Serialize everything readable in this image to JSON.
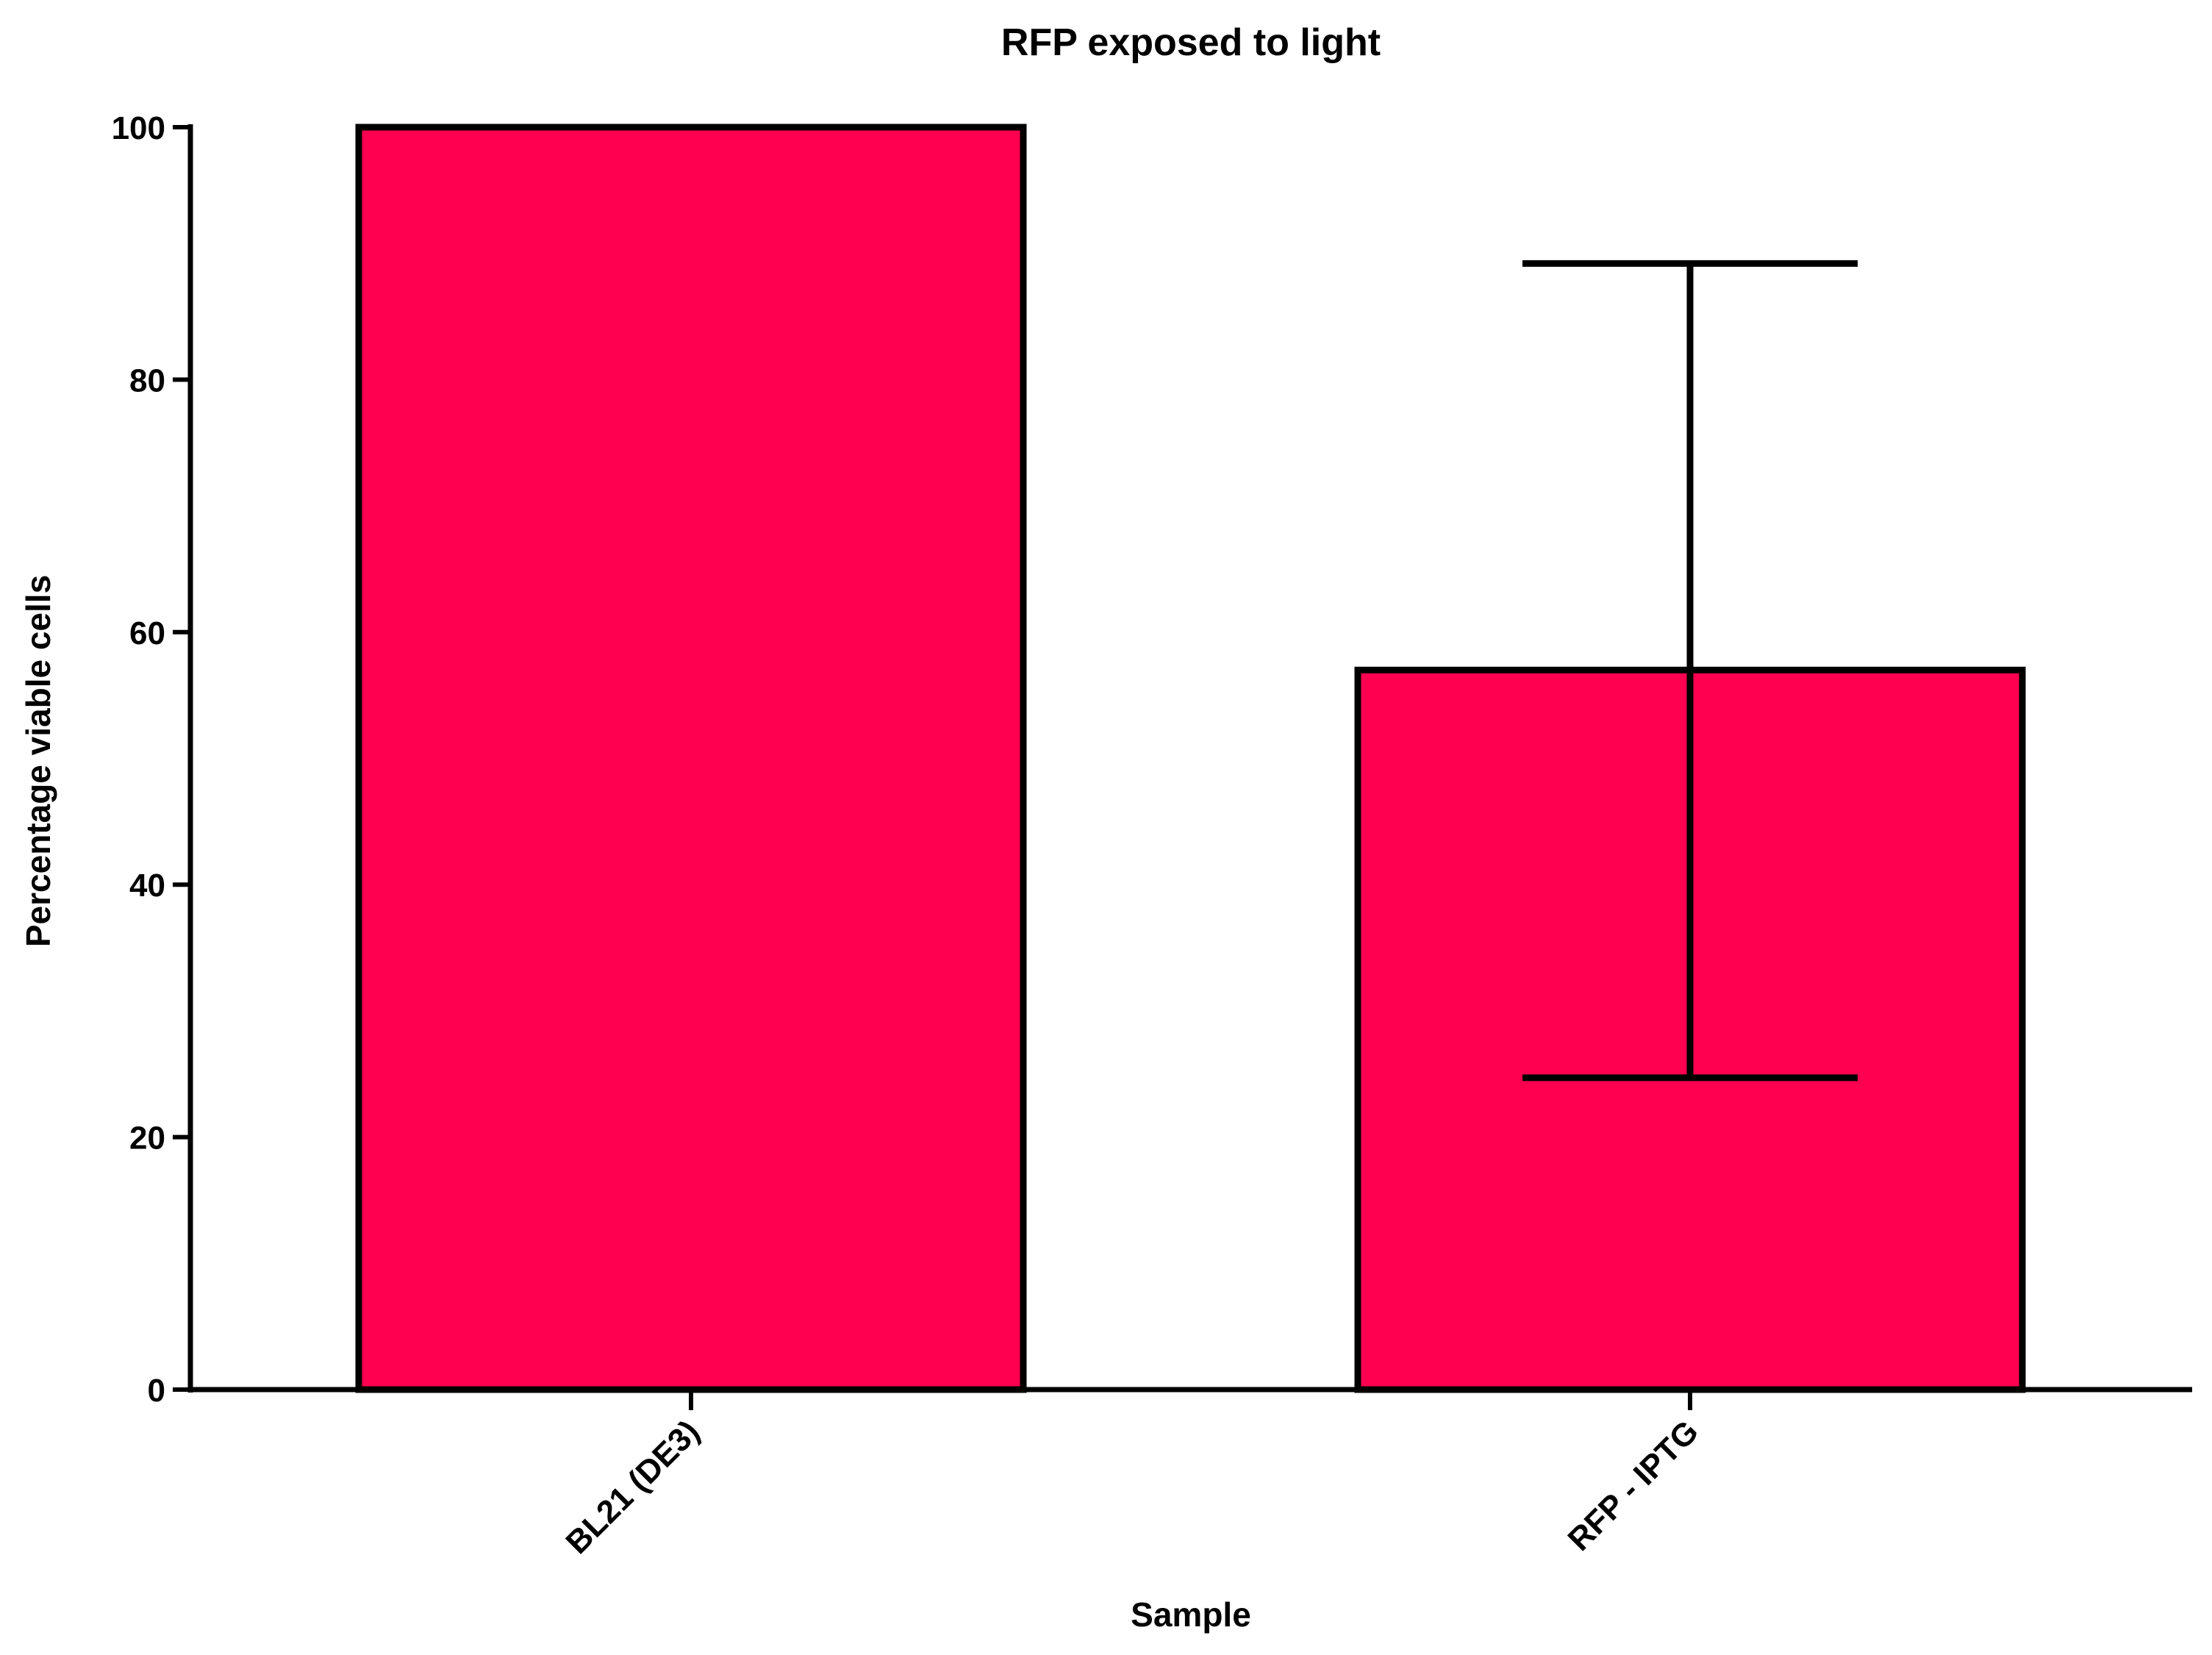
{
  "chart_data": {
    "type": "bar",
    "title": "RFP exposed to light",
    "xlabel": "Sample",
    "ylabel": "Percentage viable cells",
    "categories": [
      "BL21 (DE3)",
      "RFP - IPTG"
    ],
    "values": [
      100,
      57
    ],
    "error_bars": [
      {
        "low": null,
        "high": null
      },
      {
        "low": 24.7,
        "high": 89.2
      }
    ],
    "ylim": [
      0,
      100
    ],
    "yticks": [
      0,
      20,
      40,
      60,
      80,
      100
    ],
    "grid": false,
    "legend": "none",
    "bar_color": "#ff0050",
    "edge_color": "#000000"
  }
}
